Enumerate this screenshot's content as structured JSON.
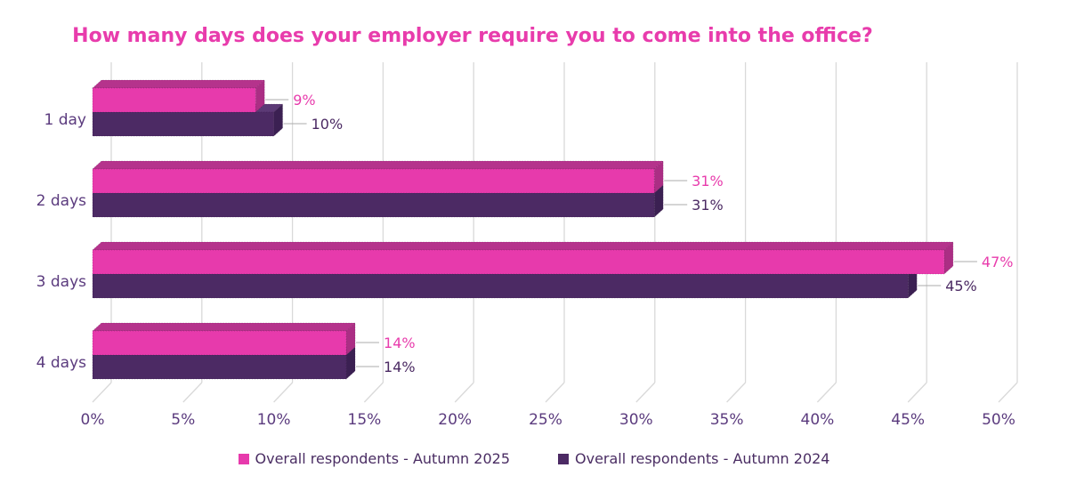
{
  "chart_data": {
    "type": "bar",
    "orientation": "horizontal",
    "style": "3d",
    "title": "How many days does your employer require you to come into the office?",
    "title_color": "#E83CAC",
    "categories": [
      "1 day",
      "2 days",
      "3 days",
      "4 days"
    ],
    "series": [
      {
        "name": "Overall respondents - Autumn 2025",
        "values": [
          9,
          31,
          47,
          14
        ],
        "data_labels": [
          "9%",
          "31%",
          "47%",
          "14%"
        ],
        "color": "#E73AAC",
        "top_color": "#B5338C",
        "side_color": "#AB2E84",
        "label_color": "#E83CAC"
      },
      {
        "name": "Overall respondents - Autumn 2024",
        "values": [
          10,
          31,
          45,
          14
        ],
        "data_labels": [
          "10%",
          "31%",
          "45%",
          "14%"
        ],
        "color": "#4C2A64",
        "top_color": "#5C3A76",
        "side_color": "#3B2052",
        "label_color": "#4B2A63"
      }
    ],
    "x_ticks": [
      {
        "label": "0%",
        "value": 0
      },
      {
        "label": "5%",
        "value": 5
      },
      {
        "label": "10%",
        "value": 10
      },
      {
        "label": "15%",
        "value": 15
      },
      {
        "label": "20%",
        "value": 20
      },
      {
        "label": "25%",
        "value": 25
      },
      {
        "label": "30%",
        "value": 30
      },
      {
        "label": "35%",
        "value": 35
      },
      {
        "label": "40%",
        "value": 40
      },
      {
        "label": "45%",
        "value": 45
      },
      {
        "label": "50%",
        "value": 50
      }
    ],
    "xlim": [
      0,
      50
    ],
    "grid": true,
    "gridline_color": "#D9D9D9",
    "leader_line_color": "#ABABAB",
    "axis_text_color": "#5B3B7E",
    "category_text_color": "#5B3B7E",
    "legend_position": "bottom",
    "legend_text_color": "#4A2D63"
  }
}
